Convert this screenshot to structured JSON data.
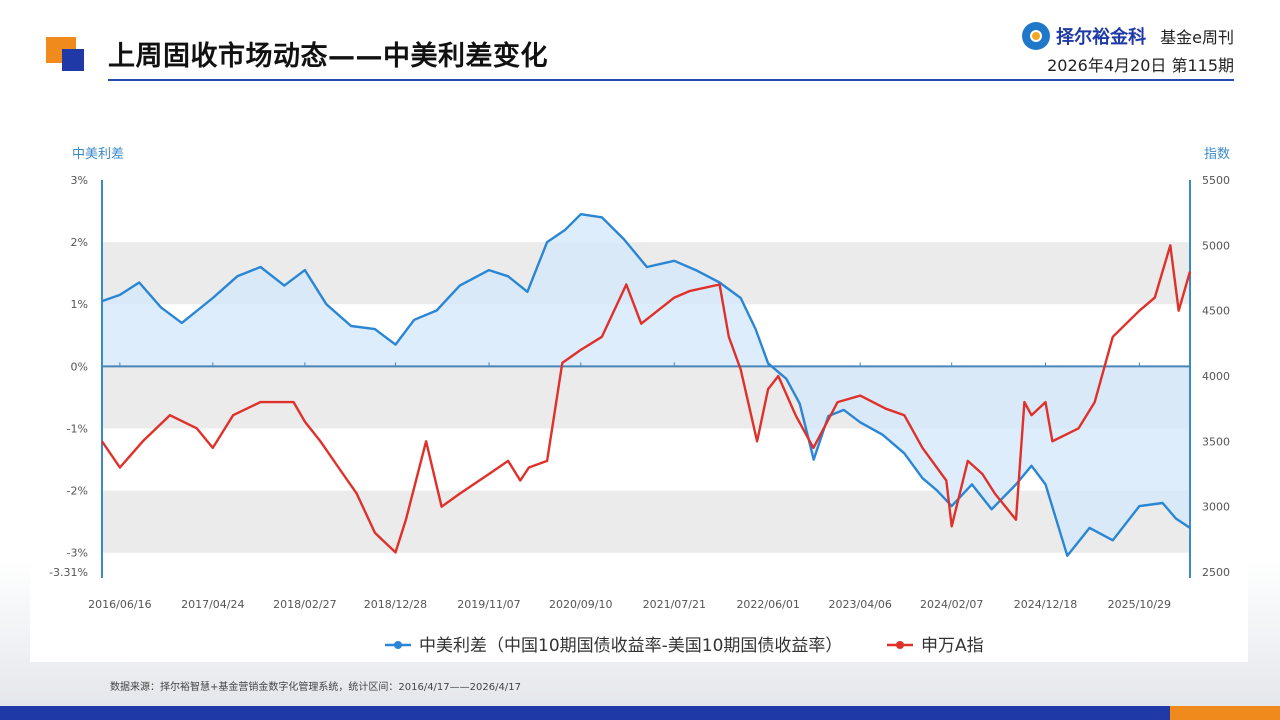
{
  "header": {
    "title": "上周固收市场动态——中美利差变化",
    "brand": "择尔裕金科",
    "publication": "基金e周刊",
    "issue": "2026年4月20日  第115期"
  },
  "colors": {
    "spread": "#2a86d4",
    "index": "#e0302a",
    "accent_blue": "#1f3aa6",
    "accent_orange": "#f08a1c",
    "band": "#ebebeb",
    "fill": "#d6e8fa"
  },
  "chart_data": {
    "type": "line",
    "left_axis_title": "中美利差",
    "right_axis_title": "指数",
    "left_ticks": [
      "3%",
      "2%",
      "1%",
      "0%",
      "-1%",
      "-2%",
      "-3%",
      "-3.31%"
    ],
    "left_tick_values": [
      3,
      2,
      1,
      0,
      -1,
      -2,
      -3,
      -3.31
    ],
    "right_ticks": [
      "5500",
      "5000",
      "4500",
      "4000",
      "3500",
      "3000",
      "2500"
    ],
    "right_tick_values": [
      5500,
      5000,
      4500,
      4000,
      3500,
      3000,
      2500
    ],
    "ylim_left": [
      -3.31,
      3
    ],
    "ylim_right": [
      2500,
      5500
    ],
    "x_ticks": [
      "2016/06/16",
      "2017/04/24",
      "2018/02/27",
      "2018/12/28",
      "2019/11/07",
      "2020/09/10",
      "2021/07/21",
      "2022/06/01",
      "2023/04/06",
      "2024/02/07",
      "2024/12/18",
      "2025/10/29"
    ],
    "x_range": [
      "2016/04/17",
      "2026/04/17"
    ],
    "series": [
      {
        "name": "中美利差（中国10期国债收益率-美国10期国债收益率）",
        "axis": "left",
        "x": [
          "2016/04/17",
          "2016/06/16",
          "2016/08/20",
          "2016/11/01",
          "2017/01/10",
          "2017/04/24",
          "2017/07/15",
          "2017/10/01",
          "2017/12/20",
          "2018/02/27",
          "2018/05/10",
          "2018/08/01",
          "2018/10/20",
          "2018/12/28",
          "2019/03/01",
          "2019/05/15",
          "2019/08/01",
          "2019/11/07",
          "2020/01/10",
          "2020/03/15",
          "2020/05/20",
          "2020/07/20",
          "2020/09/10",
          "2020/11/20",
          "2021/02/01",
          "2021/04/20",
          "2021/07/21",
          "2021/10/01",
          "2021/12/20",
          "2022/03/01",
          "2022/04/20",
          "2022/06/01",
          "2022/08/01",
          "2022/09/15",
          "2022/11/01",
          "2022/12/20",
          "2023/02/10",
          "2023/04/06",
          "2023/06/20",
          "2023/09/01",
          "2023/11/01",
          "2023/12/20",
          "2024/02/07",
          "2024/04/15",
          "2024/06/20",
          "2024/09/10",
          "2024/11/01",
          "2024/12/18",
          "2025/03/01",
          "2025/05/15",
          "2025/08/01",
          "2025/10/29",
          "2026/01/15",
          "2026/03/01",
          "2026/04/17"
        ],
        "values": [
          1.05,
          1.15,
          1.35,
          0.95,
          0.7,
          1.1,
          1.45,
          1.6,
          1.3,
          1.55,
          1.0,
          0.65,
          0.6,
          0.35,
          0.75,
          0.9,
          1.3,
          1.55,
          1.45,
          1.2,
          2.0,
          2.2,
          2.45,
          2.4,
          2.05,
          1.6,
          1.7,
          1.55,
          1.35,
          1.1,
          0.6,
          0.05,
          -0.2,
          -0.6,
          -1.5,
          -0.8,
          -0.7,
          -0.9,
          -1.1,
          -1.4,
          -1.8,
          -2.0,
          -2.25,
          -1.9,
          -2.3,
          -1.9,
          -1.6,
          -1.9,
          -3.05,
          -2.6,
          -2.8,
          -2.25,
          -2.2,
          -2.45,
          -2.6
        ]
      },
      {
        "name": "申万A指",
        "axis": "right",
        "x": [
          "2016/04/17",
          "2016/06/16",
          "2016/09/01",
          "2016/12/01",
          "2017/03/01",
          "2017/04/24",
          "2017/07/01",
          "2017/10/01",
          "2018/01/20",
          "2018/02/27",
          "2018/04/20",
          "2018/06/20",
          "2018/08/20",
          "2018/10/20",
          "2018/12/28",
          "2019/02/01",
          "2019/04/10",
          "2019/06/01",
          "2019/08/01",
          "2019/11/07",
          "2020/01/10",
          "2020/02/20",
          "2020/03/20",
          "2020/05/20",
          "2020/07/10",
          "2020/09/10",
          "2020/11/20",
          "2021/02/10",
          "2021/04/01",
          "2021/07/21",
          "2021/09/10",
          "2021/12/20",
          "2022/01/20",
          "2022/03/01",
          "2022/04/25",
          "2022/06/01",
          "2022/07/05",
          "2022/09/01",
          "2022/10/31",
          "2023/01/20",
          "2023/04/06",
          "2023/07/01",
          "2023/09/01",
          "2023/11/01",
          "2024/01/20",
          "2024/02/07",
          "2024/04/01",
          "2024/05/20",
          "2024/07/01",
          "2024/09/10",
          "2024/10/08",
          "2024/11/01",
          "2024/12/18",
          "2025/01/10",
          "2025/04/08",
          "2025/06/01",
          "2025/08/01",
          "2025/10/29",
          "2025/12/20",
          "2026/02/10",
          "2026/03/10",
          "2026/04/17"
        ],
        "values": [
          3500,
          3300,
          3500,
          3700,
          3600,
          3450,
          3700,
          3800,
          3800,
          3650,
          3500,
          3300,
          3100,
          2800,
          2650,
          2900,
          3500,
          3000,
          3100,
          3250,
          3350,
          3200,
          3300,
          3350,
          4100,
          4200,
          4300,
          4700,
          4400,
          4600,
          4650,
          4700,
          4300,
          4050,
          3500,
          3900,
          4000,
          3700,
          3450,
          3800,
          3850,
          3750,
          3700,
          3450,
          3200,
          2850,
          3350,
          3250,
          3100,
          2900,
          3800,
          3700,
          3800,
          3500,
          3600,
          3800,
          4300,
          4500,
          4600,
          5000,
          4500,
          4800
        ]
      }
    ],
    "legend": [
      "中美利差（中国10期国债收益率-美国10期国债收益率）",
      "申万A指"
    ],
    "legend_position": "bottom",
    "grid": "horizontal bands"
  },
  "footer": {
    "source": "数据来源：择尔裕智慧+基金营销金数字化管理系统，统计区间：2016/4/17——2026/4/17"
  }
}
